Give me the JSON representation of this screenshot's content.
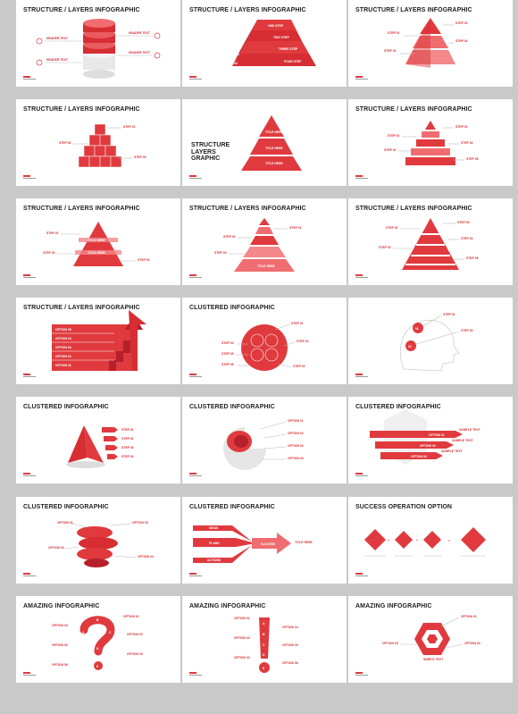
{
  "slides": [
    {
      "title": "STRUCTURE / LAYERS INFOGRAPHIC",
      "labels": [
        "HEADER TEXT",
        "HEADER TEXT",
        "HEADER TEXT",
        "HEADER TEXT"
      ]
    },
    {
      "title": "STRUCTURE / LAYERS INFOGRAPHIC",
      "labels": [
        "ONE STEP",
        "TWO STEP",
        "THREE STEP",
        "FOUR STEP",
        "01",
        "02",
        "03",
        "04"
      ]
    },
    {
      "title": "STRUCTURE / LAYERS INFOGRAPHIC",
      "labels": [
        "STEP 01",
        "STEP 02",
        "STEP 03",
        "STEP 04"
      ]
    },
    {
      "title": "STRUCTURE / LAYERS INFOGRAPHIC",
      "labels": [
        "STEP 01",
        "STEP 02",
        "STEP 03"
      ]
    },
    {
      "title": "STRUCTURE LAYERS GRAPHIC",
      "labels": [
        "TITLE HERE",
        "TITLE HERE",
        "TITLE HERE"
      ]
    },
    {
      "title": "STRUCTURE / LAYERS INFOGRAPHIC",
      "labels": [
        "STEP 01",
        "STEP 02",
        "STEP 03",
        "STEP 04",
        "STEP 05"
      ]
    },
    {
      "title": "STRUCTURE / LAYERS INFOGRAPHIC",
      "labels": [
        "TITLE HERE",
        "TITLE HERE",
        "STEP 01",
        "STEP 02",
        "STEP 03"
      ]
    },
    {
      "title": "STRUCTURE / LAYERS INFOGRAPHIC",
      "labels": [
        "STEP 01",
        "STEP 02",
        "STEP 03",
        "TITLE HERE"
      ]
    },
    {
      "title": "STRUCTURE / LAYERS INFOGRAPHIC",
      "labels": [
        "STEP 01",
        "STEP 02",
        "STEP 03",
        "STEP 04",
        "STEP 05"
      ]
    },
    {
      "title": "STRUCTURE / LAYERS INFOGRAPHIC",
      "labels": [
        "OPTION 05",
        "OPTION 04",
        "OPTION 03",
        "OPTION 02",
        "OPTION 01"
      ]
    },
    {
      "title": "CLUSTERED INFOGRAPHIC",
      "labels": [
        "STEP 01",
        "STEP 02",
        "STEP 03",
        "STEP 04",
        "STEP 05",
        "STEP 06"
      ]
    },
    {
      "title": "",
      "labels": [
        "STEP 01",
        "STEP 02",
        "01",
        "02"
      ]
    },
    {
      "title": "CLUSTERED INFOGRAPHIC",
      "labels": [
        "STEP 01",
        "STEP 02",
        "STEP 03",
        "STEP 04"
      ]
    },
    {
      "title": "CLUSTERED INFOGRAPHIC",
      "labels": [
        "OPTION 01",
        "OPTION 02",
        "OPTION 03",
        "OPTION 04"
      ]
    },
    {
      "title": "CLUSTERED INFOGRAPHIC",
      "labels": [
        "SAMPLE TEXT",
        "SAMPLE TEXT",
        "SAMPLE TEXT",
        "OPTION 01",
        "OPTION 02",
        "OPTION 03"
      ]
    },
    {
      "title": "CLUSTERED INFOGRAPHIC",
      "labels": [
        "OPTION 01",
        "OPTION 02",
        "OPTION 03",
        "OPTION 04"
      ]
    },
    {
      "title": "CLUSTERED INFOGRAPHIC",
      "labels": [
        "IDEAS",
        "PLANS",
        "ACTIONS",
        "SUCCESS",
        "TITLE HERE"
      ]
    },
    {
      "title": "SUCCESS OPERATION OPTION",
      "labels": [
        "+",
        "+",
        "="
      ]
    },
    {
      "title": "AMAZING INFOGRAPHIC",
      "labels": [
        "OPTION 01",
        "OPTION 02",
        "OPTION 03",
        "OPTION 04",
        "OPTION 05",
        "OPTION 06",
        "A",
        "B",
        "C",
        "D",
        "E"
      ]
    },
    {
      "title": "AMAZING INFOGRAPHIC",
      "labels": [
        "OPTION 01",
        "OPTION 02",
        "OPTION 03",
        "OPTION 04",
        "OPTION 05",
        "OPTION 06",
        "A",
        "B",
        "C",
        "D",
        "E"
      ]
    },
    {
      "title": "AMAZING INFOGRAPHIC",
      "labels": [
        "OPTION 01",
        "OPTION 02",
        "OPTION 03",
        "SIMPLE TEXT"
      ]
    }
  ],
  "colors": {
    "accent": "#e03a3e",
    "dark_red": "#b5202a",
    "light_red": "#f3878a",
    "background": "#c9c9c9"
  }
}
